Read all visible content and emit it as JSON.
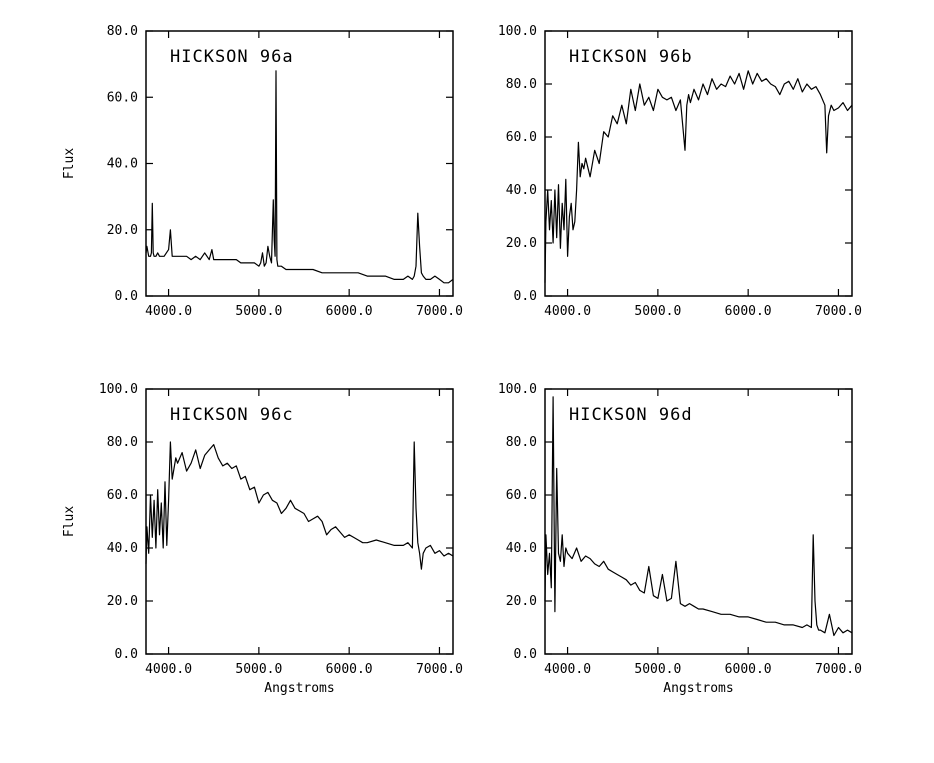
{
  "chart_data": [
    {
      "type": "line",
      "title": "HICKSON 96a",
      "xlabel": "",
      "ylabel": "Flux",
      "xlim": [
        3750,
        7150
      ],
      "ylim": [
        0,
        80
      ],
      "xticks": [
        4000,
        5000,
        6000,
        7000
      ],
      "xtick_labels": [
        "4000.0",
        "5000.0",
        "6000.0",
        "7000.0"
      ],
      "yticks": [
        0,
        20,
        40,
        60,
        80
      ],
      "ytick_labels": [
        "0.0",
        "20.0",
        "40.0",
        "60.0",
        "80.0"
      ],
      "series": [
        {
          "x": [
            3750,
            3760,
            3780,
            3800,
            3810,
            3820,
            3830,
            3840,
            3860,
            3880,
            3900,
            3950,
            4000,
            4020,
            4040,
            4060,
            4100,
            4150,
            4200,
            4250,
            4300,
            4350,
            4400,
            4450,
            4480,
            4500,
            4550,
            4600,
            4650,
            4700,
            4750,
            4800,
            4850,
            4900,
            4950,
            5000,
            5020,
            5040,
            5060,
            5080,
            5100,
            5120,
            5140,
            5160,
            5170,
            5180,
            5190,
            5200,
            5210,
            5220,
            5250,
            5300,
            5400,
            5500,
            5600,
            5700,
            5800,
            5900,
            6000,
            6100,
            6200,
            6300,
            6400,
            6500,
            6600,
            6650,
            6700,
            6720,
            6740,
            6760,
            6780,
            6800,
            6820,
            6850,
            6900,
            6950,
            7000,
            7050,
            7100,
            7150
          ],
          "y": [
            13,
            15,
            12,
            12,
            13,
            28,
            13,
            12,
            12,
            13,
            12,
            12,
            14,
            20,
            12,
            12,
            12,
            12,
            12,
            11,
            12,
            11,
            13,
            11,
            14,
            11,
            11,
            11,
            11,
            11,
            11,
            10,
            10,
            10,
            10,
            9,
            10,
            13,
            9,
            10,
            15,
            12,
            10,
            29,
            17,
            12,
            68,
            11,
            9,
            9,
            9,
            8,
            8,
            8,
            8,
            7,
            7,
            7,
            7,
            7,
            6,
            6,
            6,
            5,
            5,
            6,
            5,
            6,
            9,
            25,
            15,
            7,
            6,
            5,
            5,
            6,
            5,
            4,
            4,
            5
          ]
        }
      ]
    },
    {
      "type": "line",
      "title": "HICKSON 96b",
      "xlabel": "",
      "ylabel": "",
      "xlim": [
        3750,
        7150
      ],
      "ylim": [
        0,
        100
      ],
      "xticks": [
        4000,
        5000,
        6000,
        7000
      ],
      "xtick_labels": [
        "4000.0",
        "5000.0",
        "6000.0",
        "7000.0"
      ],
      "yticks": [
        0,
        20,
        40,
        60,
        80,
        100
      ],
      "ytick_labels": [
        "0.0",
        "20.0",
        "40.0",
        "60.0",
        "80.0",
        "100.0"
      ],
      "series": [
        {
          "x": [
            3750,
            3760,
            3780,
            3800,
            3820,
            3840,
            3860,
            3880,
            3900,
            3920,
            3940,
            3960,
            3980,
            4000,
            4020,
            4040,
            4060,
            4080,
            4100,
            4120,
            4140,
            4160,
            4180,
            4200,
            4250,
            4300,
            4350,
            4400,
            4450,
            4500,
            4550,
            4600,
            4650,
            4700,
            4750,
            4800,
            4850,
            4900,
            4950,
            5000,
            5050,
            5100,
            5150,
            5200,
            5250,
            5300,
            5320,
            5340,
            5360,
            5400,
            5450,
            5500,
            5550,
            5600,
            5650,
            5700,
            5750,
            5800,
            5850,
            5900,
            5950,
            6000,
            6050,
            6100,
            6150,
            6200,
            6250,
            6300,
            6350,
            6400,
            6450,
            6500,
            6550,
            6600,
            6650,
            6700,
            6750,
            6800,
            6850,
            6870,
            6890,
            6920,
            6950,
            7000,
            7050,
            7100,
            7150
          ],
          "y": [
            5,
            28,
            40,
            25,
            36,
            20,
            40,
            22,
            42,
            18,
            35,
            25,
            44,
            15,
            30,
            35,
            25,
            28,
            40,
            58,
            45,
            50,
            48,
            52,
            45,
            55,
            50,
            62,
            60,
            68,
            65,
            72,
            65,
            78,
            70,
            80,
            72,
            75,
            70,
            78,
            75,
            74,
            75,
            70,
            74,
            55,
            72,
            76,
            73,
            78,
            74,
            80,
            76,
            82,
            78,
            80,
            79,
            83,
            80,
            84,
            78,
            85,
            80,
            84,
            81,
            82,
            80,
            79,
            76,
            80,
            81,
            78,
            82,
            77,
            80,
            78,
            79,
            76,
            72,
            54,
            68,
            72,
            70,
            71,
            73,
            70,
            72
          ]
        }
      ]
    },
    {
      "type": "line",
      "title": "HICKSON 96c",
      "xlabel": "Angstroms",
      "ylabel": "Flux",
      "xlim": [
        3750,
        7150
      ],
      "ylim": [
        0,
        100
      ],
      "xticks": [
        4000,
        5000,
        6000,
        7000
      ],
      "xtick_labels": [
        "4000.0",
        "5000.0",
        "6000.0",
        "7000.0"
      ],
      "yticks": [
        0,
        20,
        40,
        60,
        80,
        100
      ],
      "ytick_labels": [
        "0.0",
        "20.0",
        "40.0",
        "60.0",
        "80.0",
        "100.0"
      ],
      "series": [
        {
          "x": [
            3750,
            3760,
            3780,
            3800,
            3820,
            3840,
            3860,
            3880,
            3900,
            3920,
            3940,
            3960,
            3980,
            4000,
            4020,
            4040,
            4060,
            4080,
            4100,
            4150,
            4200,
            4250,
            4300,
            4350,
            4400,
            4450,
            4500,
            4550,
            4600,
            4650,
            4700,
            4750,
            4800,
            4850,
            4900,
            4950,
            5000,
            5050,
            5100,
            5150,
            5200,
            5250,
            5300,
            5350,
            5400,
            5450,
            5500,
            5550,
            5600,
            5650,
            5700,
            5750,
            5800,
            5850,
            5900,
            5950,
            6000,
            6050,
            6100,
            6150,
            6200,
            6300,
            6400,
            6500,
            6600,
            6650,
            6700,
            6720,
            6740,
            6760,
            6780,
            6800,
            6820,
            6850,
            6900,
            6950,
            7000,
            7050,
            7100,
            7150
          ],
          "y": [
            34,
            48,
            38,
            60,
            44,
            58,
            40,
            62,
            45,
            57,
            40,
            65,
            41,
            58,
            80,
            66,
            70,
            74,
            72,
            76,
            69,
            72,
            77,
            70,
            75,
            77,
            79,
            74,
            71,
            72,
            70,
            71,
            66,
            67,
            62,
            63,
            57,
            60,
            61,
            58,
            57,
            53,
            55,
            58,
            55,
            54,
            53,
            50,
            51,
            52,
            50,
            45,
            47,
            48,
            46,
            44,
            45,
            44,
            43,
            42,
            42,
            43,
            42,
            41,
            41,
            42,
            40,
            80,
            55,
            42,
            38,
            32,
            38,
            40,
            41,
            38,
            39,
            37,
            38,
            37
          ]
        }
      ]
    },
    {
      "type": "line",
      "title": "HICKSON 96d",
      "xlabel": "Angstroms",
      "ylabel": "",
      "xlim": [
        3750,
        7150
      ],
      "ylim": [
        0,
        100
      ],
      "xticks": [
        4000,
        5000,
        6000,
        7000
      ],
      "xtick_labels": [
        "4000.0",
        "5000.0",
        "6000.0",
        "7000.0"
      ],
      "yticks": [
        0,
        20,
        40,
        60,
        80,
        100
      ],
      "ytick_labels": [
        "0.0",
        "20.0",
        "40.0",
        "60.0",
        "80.0",
        "100.0"
      ],
      "series": [
        {
          "x": [
            3750,
            3760,
            3780,
            3800,
            3820,
            3840,
            3860,
            3880,
            3900,
            3920,
            3940,
            3960,
            3980,
            4000,
            4050,
            4100,
            4150,
            4200,
            4250,
            4300,
            4350,
            4400,
            4450,
            4500,
            4550,
            4600,
            4650,
            4700,
            4750,
            4800,
            4850,
            4900,
            4950,
            5000,
            5050,
            5100,
            5150,
            5200,
            5250,
            5300,
            5350,
            5400,
            5450,
            5500,
            5600,
            5700,
            5800,
            5900,
            6000,
            6100,
            6200,
            6300,
            6400,
            6500,
            6600,
            6650,
            6700,
            6720,
            6740,
            6760,
            6780,
            6800,
            6850,
            6900,
            6950,
            7000,
            7050,
            7100,
            7150
          ],
          "y": [
            20,
            45,
            30,
            38,
            25,
            97,
            16,
            70,
            38,
            35,
            45,
            33,
            40,
            38,
            36,
            40,
            35,
            37,
            36,
            34,
            33,
            35,
            32,
            31,
            30,
            29,
            28,
            26,
            27,
            24,
            23,
            33,
            22,
            21,
            30,
            20,
            21,
            35,
            19,
            18,
            19,
            18,
            17,
            17,
            16,
            15,
            15,
            14,
            14,
            13,
            12,
            12,
            11,
            11,
            10,
            11,
            10,
            45,
            20,
            11,
            9,
            9,
            8,
            15,
            7,
            10,
            8,
            9,
            8
          ]
        }
      ]
    }
  ]
}
